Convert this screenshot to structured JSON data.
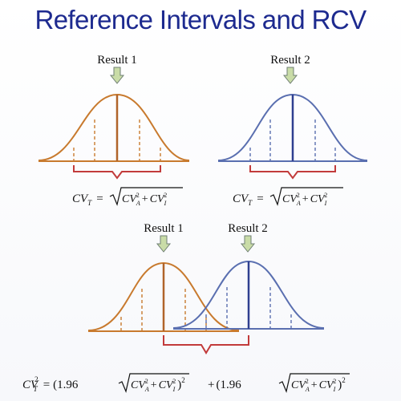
{
  "title": "Reference Intervals and RCV",
  "colors": {
    "title": "#1d2a8f",
    "orange": "#c87a2e",
    "blue": "#5a6fb0",
    "bracket": "#c23b3b",
    "arrow_fill": "#c9dca7",
    "arrow_stroke": "#6f7f73"
  },
  "icons": {
    "pointer": "down-arrow-icon"
  },
  "panels": {
    "top_left": {
      "result_label": "Result 1",
      "curve_color": "orange"
    },
    "top_right": {
      "result_label": "Result 2",
      "curve_color": "blue"
    },
    "bottom": {
      "result1_label": "Result 1",
      "result2_label": "Result 2"
    }
  },
  "formulas": {
    "single": {
      "lhs": "CV",
      "lhs_sub": "T",
      "eq": "=",
      "sqrt_terms": [
        {
          "base": "CV",
          "sub": "A",
          "sup": "2"
        },
        {
          "base": "CV",
          "sub": "I",
          "sup": "2"
        }
      ],
      "plus": "+"
    },
    "combined": {
      "lhs": "CV",
      "lhs_sub": "T",
      "lhs_sup": "2",
      "eq": "=",
      "open": "(1.96",
      "close": ")",
      "close_sup": "2",
      "plus": "+"
    }
  }
}
